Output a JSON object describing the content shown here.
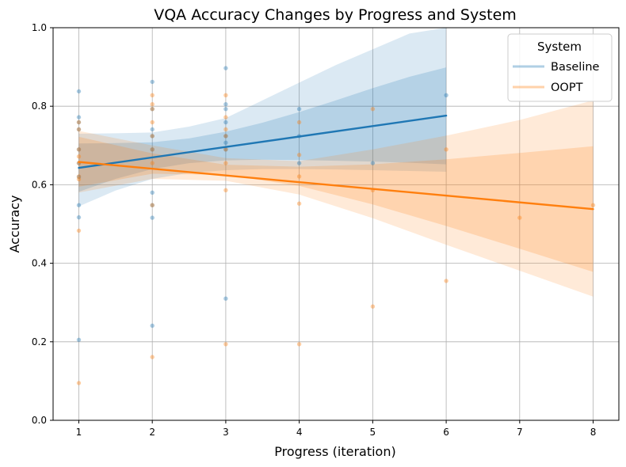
{
  "chart_data": {
    "type": "scatter",
    "title": "VQA Accuracy Changes by Progress and System",
    "xlabel": "Progress (iteration)",
    "ylabel": "Accuracy",
    "xlim": [
      0.65,
      8.35
    ],
    "ylim": [
      0.0,
      1.0
    ],
    "xticks": [
      1,
      2,
      3,
      4,
      5,
      6,
      7,
      8
    ],
    "yticks": [
      0.0,
      0.2,
      0.4,
      0.6,
      0.8,
      1.0
    ],
    "xtick_labels": [
      "1",
      "2",
      "3",
      "4",
      "5",
      "6",
      "7",
      "8"
    ],
    "ytick_labels": [
      "0.0",
      "0.2",
      "0.4",
      "0.6",
      "0.8",
      "1.0"
    ],
    "grid": true,
    "legend": {
      "title": "System",
      "placement": "top-right"
    },
    "series": [
      {
        "name": "Baseline",
        "color": "#1f77b4",
        "points": [
          [
            1,
            0.205
          ],
          [
            1,
            0.517
          ],
          [
            1,
            0.548
          ],
          [
            1,
            0.62
          ],
          [
            1,
            0.655
          ],
          [
            1,
            0.69
          ],
          [
            1,
            0.741
          ],
          [
            1,
            0.759
          ],
          [
            1,
            0.772
          ],
          [
            1,
            0.838
          ],
          [
            2,
            0.241
          ],
          [
            2,
            0.516
          ],
          [
            2,
            0.548
          ],
          [
            2,
            0.58
          ],
          [
            2,
            0.69
          ],
          [
            2,
            0.724
          ],
          [
            2,
            0.741
          ],
          [
            2,
            0.793
          ],
          [
            2,
            0.862
          ],
          [
            3,
            0.31
          ],
          [
            3,
            0.69
          ],
          [
            3,
            0.707
          ],
          [
            3,
            0.724
          ],
          [
            3,
            0.759
          ],
          [
            3,
            0.793
          ],
          [
            3,
            0.805
          ],
          [
            3,
            0.897
          ],
          [
            4,
            0.655
          ],
          [
            4,
            0.724
          ],
          [
            4,
            0.793
          ],
          [
            5,
            0.655
          ],
          [
            6,
            0.828
          ]
        ],
        "fit": {
          "x": [
            1,
            6
          ],
          "y": [
            0.643,
            0.776
          ]
        },
        "band_inner": {
          "x": [
            1,
            1.5,
            2,
            2.5,
            3,
            3.5,
            4,
            4.5,
            5,
            5.5,
            6
          ],
          "lower": [
            0.582,
            0.615,
            0.64,
            0.655,
            0.662,
            0.664,
            0.663,
            0.661,
            0.659,
            0.656,
            0.652
          ],
          "upper": [
            0.705,
            0.706,
            0.708,
            0.718,
            0.735,
            0.758,
            0.785,
            0.815,
            0.846,
            0.875,
            0.899
          ]
        },
        "band_outer": {
          "x": [
            1,
            1.5,
            2,
            2.5,
            3,
            3.5,
            4,
            4.5,
            5,
            5.5,
            6
          ],
          "lower": [
            0.545,
            0.585,
            0.615,
            0.63,
            0.637,
            0.64,
            0.64,
            0.639,
            0.637,
            0.635,
            0.633
          ],
          "upper": [
            0.73,
            0.731,
            0.733,
            0.748,
            0.77,
            0.815,
            0.86,
            0.905,
            0.945,
            0.985,
            1.02
          ]
        }
      },
      {
        "name": "OOPT",
        "color": "#ff7f0e",
        "points": [
          [
            1,
            0.095
          ],
          [
            1,
            0.483
          ],
          [
            1,
            0.614
          ],
          [
            1,
            0.621
          ],
          [
            1,
            0.655
          ],
          [
            1,
            0.672
          ],
          [
            1,
            0.69
          ],
          [
            1,
            0.741
          ],
          [
            1,
            0.759
          ],
          [
            2,
            0.161
          ],
          [
            2,
            0.548
          ],
          [
            2,
            0.655
          ],
          [
            2,
            0.69
          ],
          [
            2,
            0.724
          ],
          [
            2,
            0.759
          ],
          [
            2,
            0.793
          ],
          [
            2,
            0.805
          ],
          [
            2,
            0.828
          ],
          [
            3,
            0.194
          ],
          [
            3,
            0.586
          ],
          [
            3,
            0.655
          ],
          [
            3,
            0.69
          ],
          [
            3,
            0.724
          ],
          [
            3,
            0.741
          ],
          [
            3,
            0.772
          ],
          [
            3,
            0.828
          ],
          [
            4,
            0.194
          ],
          [
            4,
            0.552
          ],
          [
            4,
            0.621
          ],
          [
            4,
            0.676
          ],
          [
            4,
            0.759
          ],
          [
            5,
            0.29
          ],
          [
            5,
            0.586
          ],
          [
            5,
            0.793
          ],
          [
            6,
            0.355
          ],
          [
            6,
            0.69
          ],
          [
            7,
            0.516
          ],
          [
            8,
            0.548
          ]
        ],
        "fit": {
          "x": [
            1,
            8
          ],
          "y": [
            0.658,
            0.538
          ]
        },
        "band_inner": {
          "x": [
            1,
            2,
            3,
            4,
            5,
            6,
            7,
            8
          ],
          "lower": [
            0.595,
            0.628,
            0.625,
            0.597,
            0.55,
            0.495,
            0.437,
            0.378
          ],
          "upper": [
            0.722,
            0.68,
            0.651,
            0.646,
            0.652,
            0.665,
            0.681,
            0.698
          ]
        },
        "band_outer": {
          "x": [
            1,
            2,
            3,
            4,
            5,
            6,
            7,
            8
          ],
          "lower": [
            0.58,
            0.615,
            0.61,
            0.575,
            0.515,
            0.447,
            0.381,
            0.315
          ],
          "upper": [
            0.737,
            0.7,
            0.668,
            0.66,
            0.69,
            0.725,
            0.765,
            0.815
          ]
        }
      }
    ]
  }
}
